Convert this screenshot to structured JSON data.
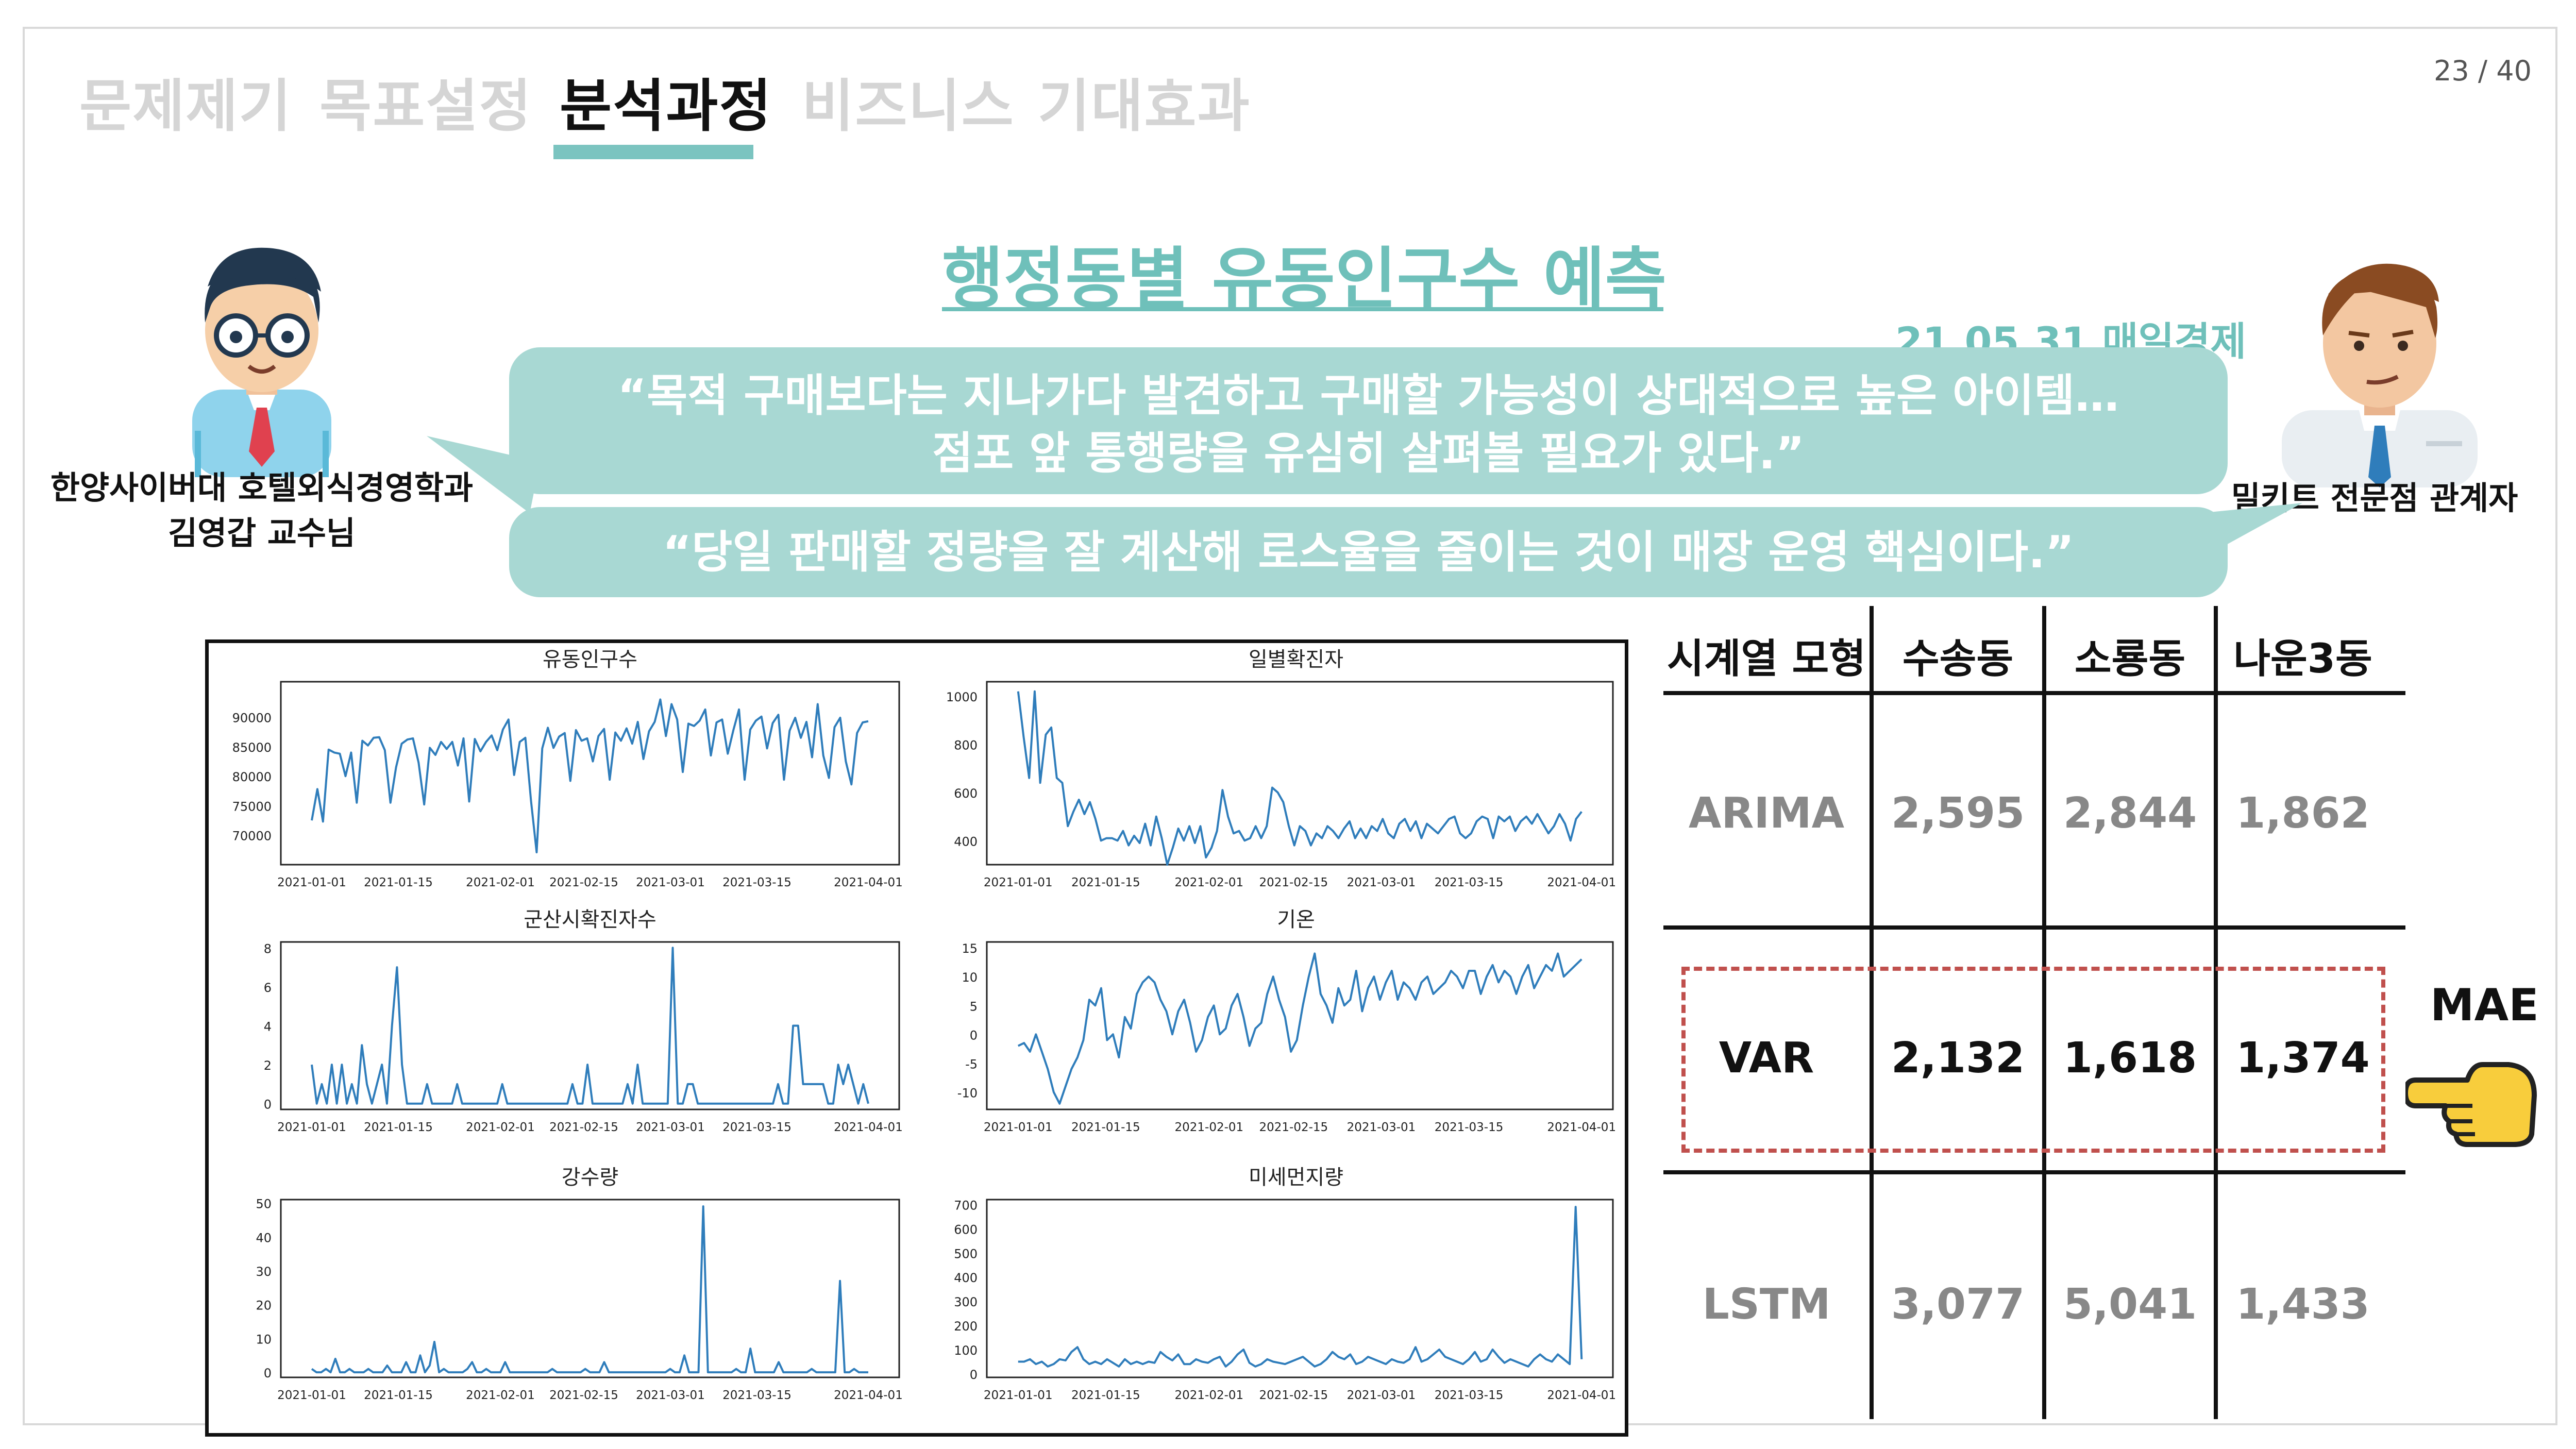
{
  "nav": {
    "tabs": [
      {
        "label": "문제제기",
        "active": false
      },
      {
        "label": "목표설정",
        "active": false
      },
      {
        "label": "분석과정",
        "active": true
      },
      {
        "label": "비즈니스",
        "active": false
      },
      {
        "label": "기대효과",
        "active": false
      }
    ]
  },
  "page_number": "23 / 40",
  "title": "행정동별 유동인구수 예측",
  "source": "21.05.31 매일경제",
  "quotes": {
    "first_line1": "“목적 구매보다는 지나가다 발견하고 구매할 가능성이 상대적으로 높은 아이템…",
    "first_line2": "점포 앞 통행량을 유심히 살펴볼 필요가 있다.”",
    "second": "“당일 판매할 정량을 잘 계산해 로스율을 줄이는 것이 매장 운영 핵심이다.”"
  },
  "speakers": {
    "left_line1": "한양사이버대 호텔외식경영학과",
    "left_line2": "김영갑 교수님",
    "right": "밀키트 전문점 관계자"
  },
  "colors": {
    "accent": "#6fc0ba",
    "bubble": "#a8d8d3",
    "series_line": "#2f7dbb",
    "highlight_box": "#c0504d"
  },
  "chart_data": [
    {
      "type": "line",
      "title": "유동인구수",
      "yticks": [
        "90000",
        "85000",
        "80000",
        "75000",
        "70000"
      ],
      "ylim": [
        65000,
        96000
      ],
      "xticks": [
        "2021-01-01",
        "2021-01-15",
        "2021-02-01",
        "2021-02-15",
        "2021-03-01",
        "2021-03-15",
        "2021-04-01"
      ],
      "values": [
        72500,
        77800,
        72300,
        84500,
        84000,
        83800,
        80000,
        84000,
        75500,
        86000,
        85200,
        86500,
        86600,
        84400,
        75500,
        81500,
        85500,
        86200,
        86400,
        82300,
        75200,
        84800,
        83600,
        85800,
        84600,
        85800,
        81800,
        86400,
        75700,
        86300,
        84200,
        85800,
        86900,
        84400,
        87900,
        89600,
        80200,
        85800,
        86500,
        75800,
        67100,
        84700,
        88200,
        84800,
        86700,
        87300,
        79200,
        87800,
        86000,
        86400,
        82500,
        86800,
        88000,
        79400,
        87400,
        86000,
        88100,
        85500,
        89200,
        82900,
        87600,
        89200,
        93000,
        86800,
        92200,
        89600,
        80700,
        88900,
        88500,
        89400,
        91300,
        83500,
        89100,
        89600,
        83800,
        87800,
        91300,
        79400,
        87900,
        89400,
        90100,
        84700,
        89000,
        90400,
        79400,
        87700,
        89900,
        86500,
        89200,
        83200,
        92200,
        83500,
        79700,
        88300,
        89900,
        82500,
        78600,
        87300,
        89100,
        89300
      ]
    },
    {
      "type": "line",
      "title": "일별확진자",
      "yticks": [
        "1000",
        "800",
        "600",
        "400"
      ],
      "ylim": [
        300,
        1060
      ],
      "xticks": [
        "2021-01-01",
        "2021-01-15",
        "2021-02-01",
        "2021-02-15",
        "2021-03-01",
        "2021-03-15",
        "2021-04-01"
      ],
      "values": [
        1020,
        830,
        660,
        1020,
        640,
        840,
        870,
        660,
        640,
        460,
        520,
        570,
        510,
        560,
        490,
        400,
        410,
        410,
        400,
        440,
        380,
        420,
        390,
        470,
        380,
        500,
        410,
        300,
        370,
        450,
        400,
        460,
        390,
        460,
        330,
        370,
        440,
        610,
        500,
        430,
        440,
        400,
        410,
        460,
        410,
        460,
        620,
        600,
        560,
        460,
        380,
        460,
        440,
        380,
        430,
        410,
        460,
        440,
        410,
        450,
        480,
        410,
        450,
        410,
        460,
        440,
        490,
        430,
        410,
        470,
        490,
        440,
        480,
        410,
        470,
        450,
        430,
        460,
        490,
        500,
        430,
        410,
        430,
        480,
        500,
        490,
        410,
        500,
        480,
        500,
        440,
        480,
        500,
        470,
        510,
        470,
        430,
        460,
        510,
        470,
        400,
        490,
        520
      ]
    },
    {
      "type": "line",
      "title": "군산시확진자수",
      "yticks": [
        "8",
        "6",
        "4",
        "2",
        "0"
      ],
      "ylim": [
        -0.3,
        8.3
      ],
      "xticks": [
        "2021-01-01",
        "2021-01-15",
        "2021-02-01",
        "2021-02-15",
        "2021-03-01",
        "2021-03-15",
        "2021-04-01"
      ],
      "values": [
        2,
        0,
        1,
        0,
        2,
        0,
        2,
        0,
        1,
        0,
        3,
        1,
        0,
        1,
        2,
        0,
        4,
        7,
        2,
        0,
        0,
        0,
        0,
        1,
        0,
        0,
        0,
        0,
        0,
        1,
        0,
        0,
        0,
        0,
        0,
        0,
        0,
        0,
        1,
        0,
        0,
        0,
        0,
        0,
        0,
        0,
        0,
        0,
        0,
        0,
        0,
        0,
        1,
        0,
        0,
        2,
        0,
        0,
        0,
        0,
        0,
        0,
        0,
        1,
        0,
        2,
        0,
        0,
        0,
        0,
        0,
        0,
        8,
        0,
        0,
        1,
        1,
        0,
        0,
        0,
        0,
        0,
        0,
        0,
        0,
        0,
        0,
        0,
        0,
        0,
        0,
        0,
        0,
        1,
        0,
        0,
        4,
        4,
        1,
        1,
        1,
        1,
        1,
        0,
        0,
        2,
        1,
        2,
        1,
        0,
        1,
        0
      ]
    },
    {
      "type": "line",
      "title": "기온",
      "yticks": [
        "15",
        "10",
        "5",
        "0",
        "-5",
        "-10"
      ],
      "ylim": [
        -13,
        16
      ],
      "xticks": [
        "2021-01-01",
        "2021-01-15",
        "2021-02-01",
        "2021-02-15",
        "2021-03-01",
        "2021-03-15",
        "2021-04-01"
      ],
      "values": [
        -2,
        -1.5,
        -3,
        0,
        -3,
        -6,
        -10,
        -12,
        -9,
        -6,
        -4,
        -1,
        6,
        5,
        8,
        -1,
        0,
        -4,
        3,
        1,
        7,
        9,
        10,
        9,
        6,
        4,
        0,
        4,
        6,
        2,
        -3,
        -1,
        3,
        5,
        0,
        1,
        5,
        7,
        3,
        -2,
        1,
        2,
        7,
        10,
        6,
        3,
        -3,
        -1,
        5,
        10,
        14,
        7,
        5,
        2,
        8,
        5,
        6,
        11,
        4,
        8,
        10,
        6,
        9,
        11,
        6,
        9,
        8,
        6,
        9,
        10,
        7,
        8,
        9,
        11,
        10,
        8,
        11,
        11,
        7,
        10,
        12,
        9,
        11,
        10,
        7,
        10,
        12,
        8,
        10,
        12,
        11,
        14,
        10,
        11,
        12,
        13
      ]
    },
    {
      "type": "line",
      "title": "강수량",
      "yticks": [
        "50",
        "40",
        "30",
        "20",
        "10",
        "0"
      ],
      "ylim": [
        -1.5,
        51
      ],
      "xticks": [
        "2021-01-01",
        "2021-01-15",
        "2021-02-01",
        "2021-02-15",
        "2021-03-01",
        "2021-03-15",
        "2021-04-01"
      ],
      "values": [
        1,
        0,
        0,
        1,
        0,
        4,
        0,
        0,
        1,
        0,
        0,
        0,
        1,
        0,
        0,
        0,
        2,
        0,
        0,
        0,
        3,
        0,
        0,
        5,
        0,
        2,
        9,
        0,
        1,
        0,
        0,
        0,
        0,
        1,
        3,
        0,
        0,
        1,
        0,
        0,
        0,
        3,
        0,
        0,
        0,
        0,
        0,
        0,
        0,
        0,
        0,
        1,
        0,
        0,
        0,
        0,
        0,
        0,
        1,
        0,
        0,
        0,
        3,
        0,
        0,
        0,
        0,
        0,
        0,
        0,
        0,
        0,
        0,
        0,
        0,
        0,
        1,
        0,
        0,
        5,
        0,
        0,
        0,
        49,
        0,
        0,
        0,
        0,
        0,
        0,
        1,
        0,
        0,
        7,
        0,
        0,
        0,
        0,
        0,
        3,
        0,
        0,
        0,
        0,
        0,
        0,
        1,
        0,
        0,
        0,
        0,
        0,
        27,
        0,
        0,
        1,
        0,
        0,
        0
      ]
    },
    {
      "type": "line",
      "title": "미세먼지량",
      "yticks": [
        "700",
        "600",
        "500",
        "400",
        "300",
        "200",
        "100",
        "0"
      ],
      "ylim": [
        -15,
        720
      ],
      "xticks": [
        "2021-01-01",
        "2021-01-15",
        "2021-02-01",
        "2021-02-15",
        "2021-03-01",
        "2021-03-15",
        "2021-04-01"
      ],
      "values": [
        50,
        50,
        60,
        40,
        50,
        30,
        40,
        60,
        55,
        90,
        110,
        60,
        40,
        50,
        40,
        60,
        45,
        30,
        60,
        40,
        50,
        40,
        50,
        45,
        90,
        70,
        55,
        80,
        40,
        40,
        60,
        50,
        45,
        60,
        70,
        30,
        50,
        80,
        100,
        45,
        30,
        40,
        60,
        50,
        45,
        40,
        50,
        60,
        70,
        50,
        30,
        40,
        60,
        90,
        70,
        60,
        80,
        40,
        50,
        70,
        60,
        50,
        40,
        60,
        50,
        45,
        60,
        110,
        50,
        60,
        80,
        100,
        70,
        60,
        50,
        40,
        60,
        90,
        50,
        60,
        100,
        70,
        45,
        60,
        50,
        40,
        30,
        60,
        80,
        60,
        50,
        80,
        60,
        40,
        690,
        60
      ]
    }
  ],
  "table": {
    "headers": [
      "시계열 모형",
      "수송동",
      "소룡동",
      "나운3동"
    ],
    "rows": [
      {
        "model": "ARIMA",
        "values": [
          "2,595",
          "2,844",
          "1,862"
        ],
        "highlight": false
      },
      {
        "model": "VAR",
        "values": [
          "2,132",
          "1,618",
          "1,374"
        ],
        "highlight": true
      },
      {
        "model": "LSTM",
        "values": [
          "3,077",
          "5,041",
          "1,433"
        ],
        "highlight": false
      }
    ]
  },
  "mae_label": "MAE",
  "icons": {
    "left_avatar": "professor-avatar-icon",
    "right_avatar": "businessman-avatar-icon",
    "pointer": "pointing-hand-icon"
  }
}
